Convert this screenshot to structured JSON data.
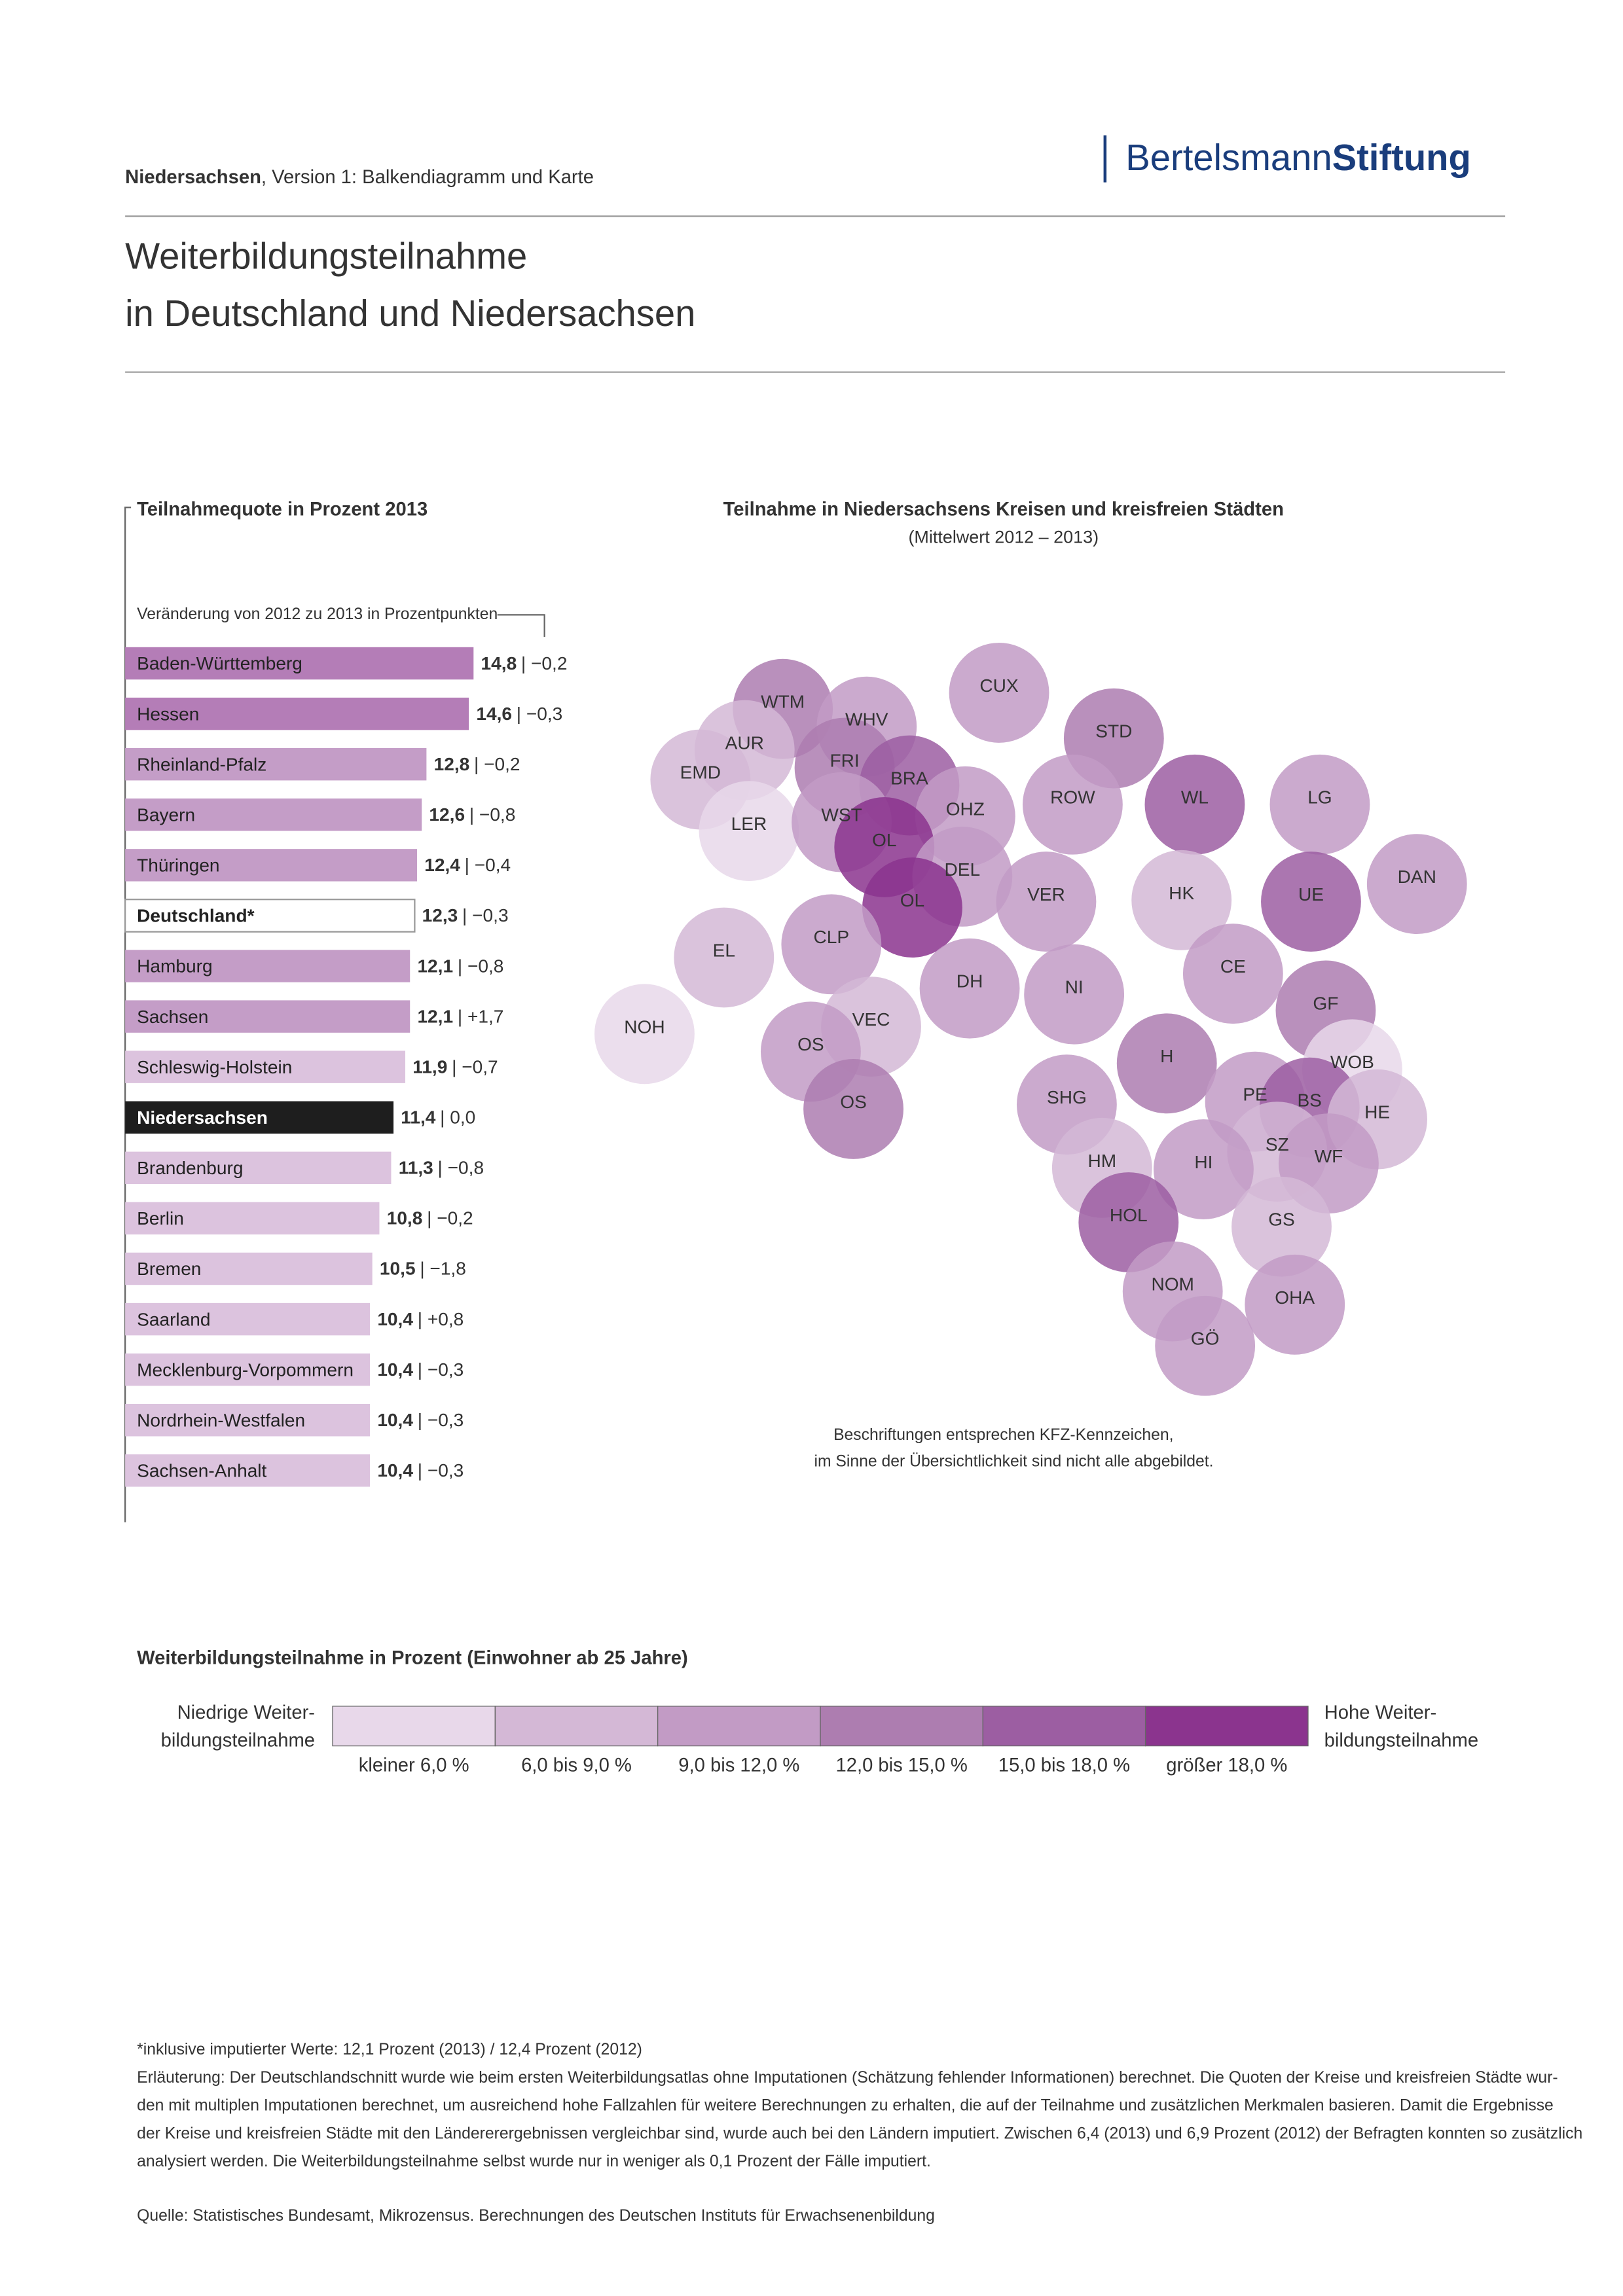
{
  "header": {
    "region": "Niedersachsen",
    "subtitle": ", Version 1: Balkendiagramm und Karte",
    "logo_a": "Bertelsmann",
    "logo_b": "Stiftung"
  },
  "title": [
    "Weiterbildungsteilnahme",
    "in Deutschland und Niedersachsen"
  ],
  "chart_data": {
    "type": "bar",
    "orientation": "horizontal",
    "title": "Teilnahmequote in Prozent 2013",
    "subtitle": "Veränderung von 2012 zu 2013 in Prozentpunkten",
    "categories": [
      "Baden-Württemberg",
      "Hessen",
      "Rheinland-Pfalz",
      "Bayern",
      "Thüringen",
      "Deutschland*",
      "Hamburg",
      "Sachsen",
      "Schleswig-Holstein",
      "Niedersachsen",
      "Brandenburg",
      "Berlin",
      "Bremen",
      "Saarland",
      "Mecklenburg-Vorpommern",
      "Nordrhein-Westfalen",
      "Sachsen-Anhalt"
    ],
    "values": [
      14.8,
      14.6,
      12.8,
      12.6,
      12.4,
      12.3,
      12.1,
      12.1,
      11.9,
      11.4,
      11.3,
      10.8,
      10.5,
      10.4,
      10.4,
      10.4,
      10.4
    ],
    "value_labels": [
      "14,8",
      "14,6",
      "12,8",
      "12,6",
      "12,4",
      "12,3",
      "12,1",
      "12,1",
      "11,9",
      "11,4",
      "11,3",
      "10,8",
      "10,5",
      "10,4",
      "10,4",
      "10,4",
      "10,4"
    ],
    "change_labels": [
      "| −0,2",
      "| −0,3",
      "| −0,2",
      "| −0,8",
      "| −0,4",
      "| −0,3",
      "| −0,8",
      "| +1,7",
      "| −0,7",
      "| 0,0",
      "| −0,8",
      "| −0,2",
      "| −1,8",
      "| +0,8",
      "| −0,3",
      "| −0,3",
      "| −0,3"
    ],
    "colors": [
      "#b47db7",
      "#b47db7",
      "#c49dc7",
      "#c49dc7",
      "#c49dc7",
      "#ffffff",
      "#c49dc7",
      "#c49dc7",
      "#dcc3de",
      "#1e1e1e",
      "#dcc3de",
      "#dcc3de",
      "#dcc3de",
      "#dcc3de",
      "#dcc3de",
      "#dcc3de",
      "#dcc3de"
    ]
  },
  "map": {
    "title": "Teilnahme in Niedersachsens Kreisen und kreisfreien Städten",
    "subtitle": "(Mittelwert 2012 – 2013)",
    "regions": [
      {
        "label": "CUX",
        "color": "#c29bc5"
      },
      {
        "label": "STD",
        "color": "#ad7db0"
      },
      {
        "label": "WTM",
        "color": "#ad7db0"
      },
      {
        "label": "WHV",
        "color": "#c29bc5"
      },
      {
        "label": "AUR",
        "color": "#d4b8d6"
      },
      {
        "label": "FRI",
        "color": "#ad7db0"
      },
      {
        "label": "EMD",
        "color": "#d4b8d6"
      },
      {
        "label": "BRA",
        "color": "#9c5ea2"
      },
      {
        "label": "WL",
        "color": "#9c5ea2"
      },
      {
        "label": "LG",
        "color": "#c29bc5"
      },
      {
        "label": "ROW",
        "color": "#c29bc5"
      },
      {
        "label": "OHZ",
        "color": "#c29bc5"
      },
      {
        "label": "LER",
        "color": "#e8d8ea"
      },
      {
        "label": "WST",
        "color": "#c29bc5"
      },
      {
        "label": "OL",
        "color": "#8b348e"
      },
      {
        "label": "DEL",
        "color": "#c29bc5"
      },
      {
        "label": "DAN",
        "color": "#c29bc5"
      },
      {
        "label": "VER",
        "color": "#c29bc5"
      },
      {
        "label": "HK",
        "color": "#d4b8d6"
      },
      {
        "label": "UE",
        "color": "#9c5ea2"
      },
      {
        "label": "OL",
        "color": "#8b348e"
      },
      {
        "label": "CLP",
        "color": "#c29bc5"
      },
      {
        "label": "EL",
        "color": "#d4b8d6"
      },
      {
        "label": "CE",
        "color": "#c29bc5"
      },
      {
        "label": "DH",
        "color": "#c29bc5"
      },
      {
        "label": "NI",
        "color": "#c29bc5"
      },
      {
        "label": "GF",
        "color": "#ad7db0"
      },
      {
        "label": "NOH",
        "color": "#e8d8ea"
      },
      {
        "label": "VEC",
        "color": "#d4b8d6"
      },
      {
        "label": "OS",
        "color": "#c29bc5"
      },
      {
        "label": "H",
        "color": "#ad7db0"
      },
      {
        "label": "WOB",
        "color": "#e8d8ea"
      },
      {
        "label": "SHG",
        "color": "#c29bc5"
      },
      {
        "label": "PE",
        "color": "#c29bc5"
      },
      {
        "label": "BS",
        "color": "#9c5ea2"
      },
      {
        "label": "HE",
        "color": "#d4b8d6"
      },
      {
        "label": "OS",
        "color": "#ad7db0"
      },
      {
        "label": "SZ",
        "color": "#d4b8d6"
      },
      {
        "label": "WF",
        "color": "#c29bc5"
      },
      {
        "label": "HM",
        "color": "#d4b8d6"
      },
      {
        "label": "HI",
        "color": "#c29bc5"
      },
      {
        "label": "HOL",
        "color": "#9c5ea2"
      },
      {
        "label": "GS",
        "color": "#d4b8d6"
      },
      {
        "label": "NOM",
        "color": "#c29bc5"
      },
      {
        "label": "OHA",
        "color": "#c29bc5"
      },
      {
        "label": "GÖ",
        "color": "#c29bc5"
      }
    ],
    "note": [
      "Beschriftungen entsprechen KFZ-Kennzeichen,",
      "im Sinne der Übersichtlichkeit sind nicht alle abgebildet."
    ]
  },
  "legend": {
    "title": "Weiterbildungsteilnahme in Prozent (Einwohner ab 25 Jahre)",
    "low": [
      "Niedrige Weiter-",
      "bildungsteilnahme"
    ],
    "high": [
      "Hohe Weiter-",
      "bildungsteilnahme"
    ],
    "classes": [
      "kleiner 6,0 %",
      "6,0 bis 9,0 %",
      "9,0 bis 12,0 %",
      "12,0 bis 15,0 %",
      "15,0 bis 18,0 %",
      "größer 18,0 %"
    ],
    "colors": [
      "#e8d8ea",
      "#d4b8d6",
      "#c29bc5",
      "#ad7db0",
      "#9c5ea2",
      "#8b348e"
    ]
  },
  "footnotes": [
    "*inklusive imputierter Werte: 12,1 Prozent (2013) / 12,4 Prozent (2012)",
    "Erläuterung: Der Deutschlandschnitt wurde wie beim ersten Weiterbildungsatlas ohne Imputationen (Schätzung fehlender Informationen) berechnet. Die Quoten der Kreise und kreisfreien Städte wur-",
    "den mit multiplen Imputationen berechnet, um ausreichend hohe Fallzahlen für weitere Berechnungen zu erhalten, die auf der Teilnahme und zusätzlichen Merkmalen basieren. Damit die Ergebnisse",
    "der Kreise und kreisfreien Städte mit den Ländererergebnissen vergleichbar sind, wurde auch bei den Ländern imputiert. Zwischen 6,4 (2013) und 6,9 Prozent (2012) der Befragten konnten so zusätzlich",
    "analysiert werden. Die Weiterbildungsteilnahme selbst wurde nur in weniger als 0,1 Prozent der Fälle imputiert."
  ],
  "source": "Quelle: Statistisches Bundesamt, Mikrozensus. Berechnungen des Deutschen Instituts für Erwachsenenbildung"
}
